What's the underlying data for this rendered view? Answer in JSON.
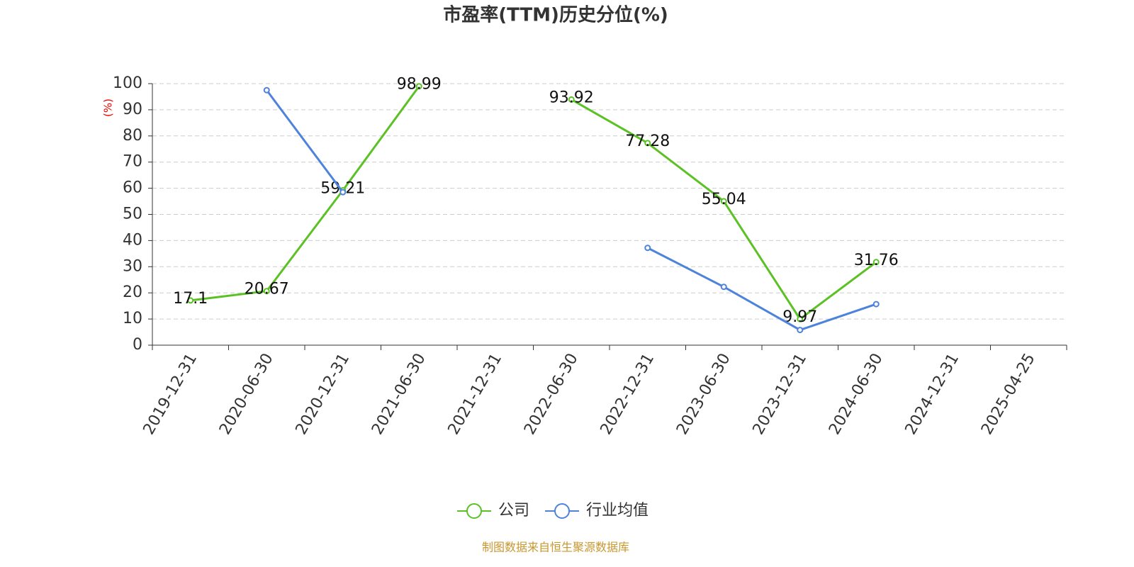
{
  "chart_data": {
    "type": "line",
    "title": "市盈率(TTM)历史分位(%)",
    "y_label": "(%)",
    "categories": [
      "2019-12-31",
      "2020-06-30",
      "2020-12-31",
      "2021-06-30",
      "2021-12-31",
      "2022-06-30",
      "2022-12-31",
      "2023-06-30",
      "2023-12-31",
      "2024-06-30",
      "2024-12-31",
      "2025-04-25"
    ],
    "series": [
      {
        "name": "公司",
        "color": "#5bc124",
        "show_labels": true,
        "values": [
          17.1,
          20.67,
          59.21,
          98.99,
          null,
          93.92,
          77.28,
          55.04,
          9.97,
          31.76,
          null,
          null
        ]
      },
      {
        "name": "行业均值",
        "color": "#4e83dc",
        "show_labels": false,
        "values": [
          null,
          97.5,
          58.5,
          null,
          null,
          null,
          37.2,
          22.3,
          5.8,
          15.7,
          null,
          null
        ]
      }
    ],
    "ylim": [
      0,
      100
    ],
    "yticks": [
      0,
      10,
      20,
      30,
      40,
      50,
      60,
      70,
      80,
      90,
      100
    ],
    "grid": true,
    "legend": "bottom",
    "source": "制图数据来自恒生聚源数据库"
  }
}
